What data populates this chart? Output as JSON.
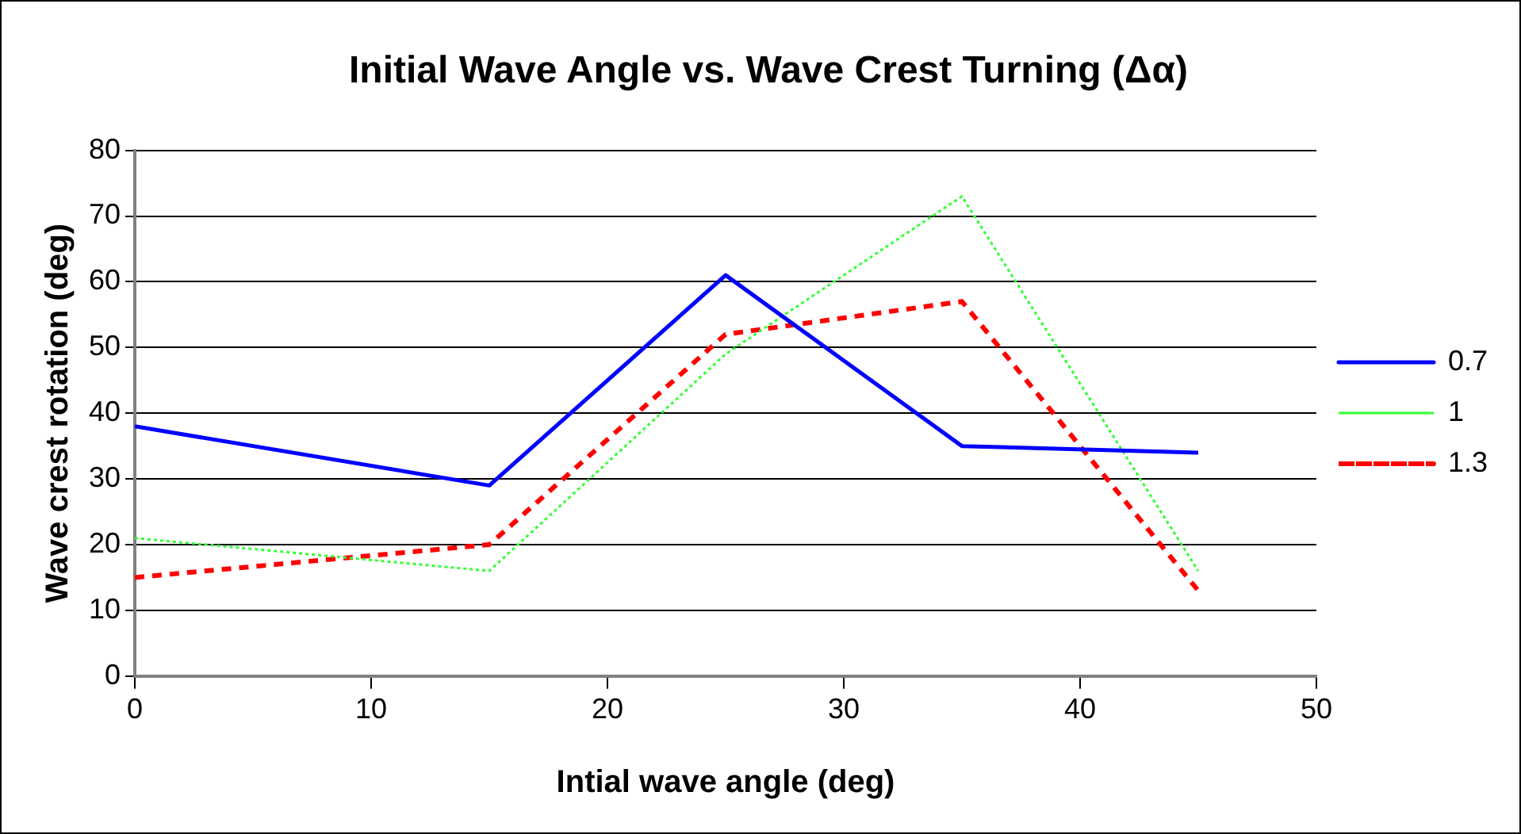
{
  "chart_data": {
    "type": "line",
    "title": "Initial Wave Angle vs. Wave Crest Turning (Δα)",
    "xlabel": "Intial wave angle (deg)",
    "ylabel": "Wave crest rotation (deg)",
    "x": [
      0,
      15,
      25,
      35,
      45
    ],
    "series": [
      {
        "name": "0.7",
        "color": "#0000ff",
        "line_style": "solid",
        "values": [
          38,
          29,
          61,
          35,
          34
        ]
      },
      {
        "name": "1",
        "color": "#33ff33",
        "line_style": "dotted",
        "values": [
          21,
          16,
          49,
          73,
          16
        ]
      },
      {
        "name": "1.3",
        "color": "#ff0000",
        "line_style": "dashed",
        "values": [
          15,
          20,
          52,
          57,
          13
        ]
      }
    ],
    "xlim": [
      0,
      50
    ],
    "xticks": [
      0,
      10,
      20,
      30,
      40,
      50
    ],
    "ylim": [
      0,
      80
    ],
    "yticks": [
      0,
      10,
      20,
      30,
      40,
      50,
      60,
      70,
      80
    ],
    "grid": "y",
    "legend": "right",
    "marker": "none"
  }
}
